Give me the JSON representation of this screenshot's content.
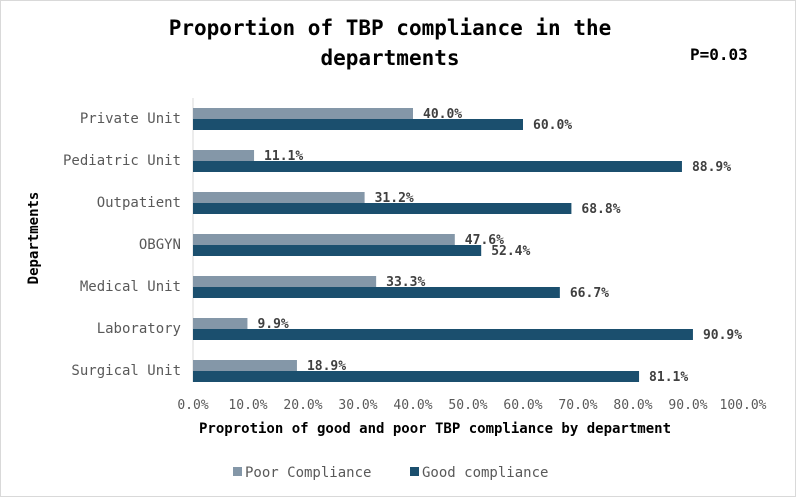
{
  "chart_data": {
    "type": "bar",
    "orientation": "horizontal",
    "title": "Proportion of TBP compliance in the departments",
    "annotation": "P=0.03",
    "xlabel": "Proprotion of good and poor TBP compliance by department",
    "ylabel": "Departments",
    "xlim": [
      0,
      100
    ],
    "x_ticks": [
      "0.0%",
      "10.0%",
      "20.0%",
      "30.0%",
      "40.0%",
      "50.0%",
      "60.0%",
      "70.0%",
      "80.0%",
      "90.0%",
      "100.0%"
    ],
    "categories": [
      "Private Unit",
      "Pediatric Unit",
      "Outpatient",
      "OBGYN",
      "Medical Unit",
      "Laboratory",
      "Surgical Unit"
    ],
    "series": [
      {
        "name": "Poor Compliance",
        "color": "#8497a8",
        "values": [
          40.0,
          11.1,
          31.2,
          47.6,
          33.3,
          9.9,
          18.9
        ],
        "labels": [
          "40.0%",
          "11.1%",
          "31.2%",
          "47.6%",
          "33.3%",
          "9.9%",
          "18.9%"
        ]
      },
      {
        "name": "Good compliance",
        "color": "#1b4f6e",
        "values": [
          60.0,
          88.9,
          68.8,
          52.4,
          66.7,
          90.9,
          81.1
        ],
        "labels": [
          "60.0%",
          "88.9%",
          "68.8%",
          "52.4%",
          "66.7%",
          "90.9%",
          "81.1%"
        ]
      }
    ],
    "legend_position": "bottom",
    "grid": false
  }
}
